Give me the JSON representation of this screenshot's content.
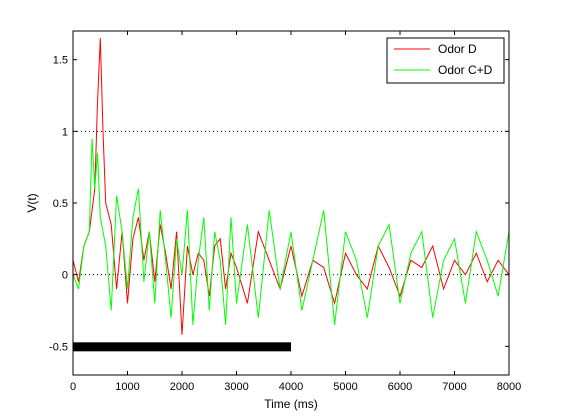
{
  "chart_data": {
    "type": "line",
    "title": "",
    "xlabel": "Time (ms)",
    "ylabel": "V(t)",
    "xlim": [
      0,
      8000
    ],
    "ylim": [
      -0.7,
      1.7
    ],
    "xticks": [
      0,
      1000,
      2000,
      3000,
      4000,
      5000,
      6000,
      7000,
      8000
    ],
    "xtick_labels": [
      "0",
      "1000",
      "2000",
      "3000",
      "4000",
      "5000",
      "6000",
      "7000",
      "8000"
    ],
    "yticks": [
      -0.5,
      0,
      0.5,
      1,
      1.5
    ],
    "ytick_labels": [
      "-0.5",
      "0",
      "0.5",
      "1",
      "1.5"
    ],
    "grid": false,
    "legend_position": "top-right",
    "threshold_line": {
      "y": 1,
      "style": "dotted",
      "x_range": [
        0,
        8000
      ]
    },
    "zero_line": {
      "y": 0,
      "style": "dotted",
      "x_range": [
        0,
        8000
      ]
    },
    "stimulus_bar": {
      "x_range": [
        0,
        4000
      ],
      "y": -0.5,
      "color": "#000000"
    },
    "series": [
      {
        "name": "Odor D",
        "color": "#ff0000",
        "x": [
          0,
          100,
          200,
          300,
          400,
          450,
          500,
          550,
          600,
          700,
          800,
          900,
          1000,
          1100,
          1200,
          1300,
          1400,
          1500,
          1600,
          1700,
          1800,
          1900,
          2000,
          2100,
          2200,
          2300,
          2400,
          2500,
          2600,
          2700,
          2800,
          2900,
          3000,
          3200,
          3400,
          3600,
          3800,
          4000,
          4200,
          4400,
          4600,
          4800,
          5000,
          5200,
          5400,
          5600,
          5800,
          6000,
          6200,
          6400,
          6600,
          6800,
          7000,
          7200,
          7400,
          7600,
          7800,
          8000
        ],
        "y": [
          0.1,
          -0.05,
          0.2,
          0.3,
          0.6,
          1.2,
          1.65,
          1.0,
          0.5,
          0.35,
          -0.1,
          0.3,
          -0.2,
          0.25,
          0.4,
          0.1,
          0.3,
          -0.05,
          0.35,
          0.15,
          -0.1,
          0.3,
          -0.42,
          0.2,
          0.0,
          0.15,
          0.1,
          -0.15,
          0.2,
          0.25,
          -0.1,
          0.15,
          0.05,
          -0.2,
          0.3,
          0.1,
          -0.1,
          0.2,
          -0.15,
          0.1,
          0.05,
          -0.2,
          0.15,
          0.0,
          -0.1,
          0.2,
          0.05,
          -0.15,
          0.1,
          0.05,
          0.2,
          -0.1,
          0.1,
          0.0,
          0.15,
          -0.05,
          0.1,
          0.0
        ]
      },
      {
        "name": "Odor C+D",
        "color": "#00ff00",
        "x": [
          0,
          100,
          200,
          300,
          350,
          400,
          450,
          500,
          600,
          700,
          800,
          900,
          1000,
          1100,
          1200,
          1300,
          1400,
          1500,
          1600,
          1700,
          1800,
          1900,
          2000,
          2100,
          2200,
          2300,
          2400,
          2500,
          2600,
          2700,
          2800,
          2900,
          3000,
          3200,
          3400,
          3600,
          3800,
          4000,
          4200,
          4400,
          4600,
          4800,
          5000,
          5200,
          5400,
          5600,
          5800,
          6000,
          6200,
          6400,
          6600,
          6800,
          7000,
          7200,
          7400,
          7600,
          7800,
          8000
        ],
        "y": [
          0.0,
          -0.1,
          0.2,
          0.3,
          0.95,
          0.6,
          0.85,
          0.4,
          0.2,
          -0.25,
          0.55,
          0.3,
          -0.1,
          0.4,
          0.6,
          -0.05,
          0.3,
          -0.2,
          0.45,
          0.1,
          -0.3,
          0.25,
          0.0,
          0.45,
          -0.35,
          0.1,
          0.4,
          -0.25,
          0.3,
          0.1,
          -0.35,
          0.4,
          -0.2,
          0.35,
          -0.3,
          0.45,
          -0.1,
          0.3,
          -0.25,
          0.1,
          0.45,
          -0.35,
          0.3,
          0.1,
          -0.3,
          0.2,
          0.35,
          -0.2,
          0.15,
          0.3,
          -0.3,
          0.1,
          0.25,
          -0.2,
          0.3,
          0.1,
          -0.15,
          0.3
        ]
      }
    ]
  }
}
